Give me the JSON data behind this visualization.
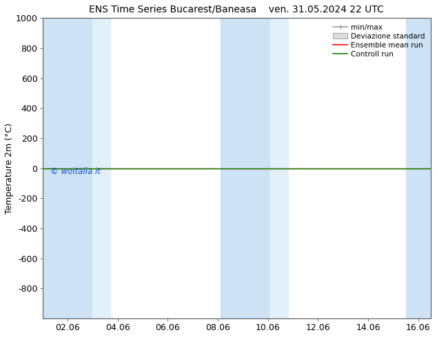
{
  "title_left": "ENS Time Series Bucarest/Baneasa",
  "title_right": "ven. 31.05.2024 22 UTC",
  "ylabel": "Temperature 2m (°C)",
  "ylim_top": -1000,
  "ylim_bottom": 1000,
  "yticks": [
    -800,
    -600,
    -400,
    -200,
    0,
    200,
    400,
    600,
    800,
    1000
  ],
  "xlim_left": 0,
  "xlim_right": 15.5,
  "xtick_labels": [
    "02.06",
    "04.06",
    "06.06",
    "08.06",
    "10.06",
    "12.06",
    "14.06",
    "16.06"
  ],
  "xtick_positions": [
    1.0,
    3.0,
    5.0,
    7.0,
    9.0,
    11.0,
    13.0,
    15.0
  ],
  "shaded_columns": [
    [
      0.0,
      1.9
    ],
    [
      1.9,
      2.7
    ],
    [
      7.0,
      7.9
    ],
    [
      8.0,
      9.0
    ],
    [
      14.5,
      15.5
    ]
  ],
  "shaded_colors": [
    "#cce0f0",
    "#daeaf8",
    "#cce0f0",
    "#daeaf8",
    "#cce0f0"
  ],
  "control_run_y": 0,
  "ensemble_mean_y": 0,
  "legend_labels": [
    "min/max",
    "Deviazione standard",
    "Ensemble mean run",
    "Controll run"
  ],
  "legend_line_colors": [
    "#999999",
    "#cccccc",
    "#ff0000",
    "#008800"
  ],
  "watermark": "© woitalia.it",
  "watermark_color": "#1155cc",
  "background_color": "#ffffff",
  "plot_bg_color": "#ffffff",
  "font_size": 9,
  "title_fontsize": 10
}
